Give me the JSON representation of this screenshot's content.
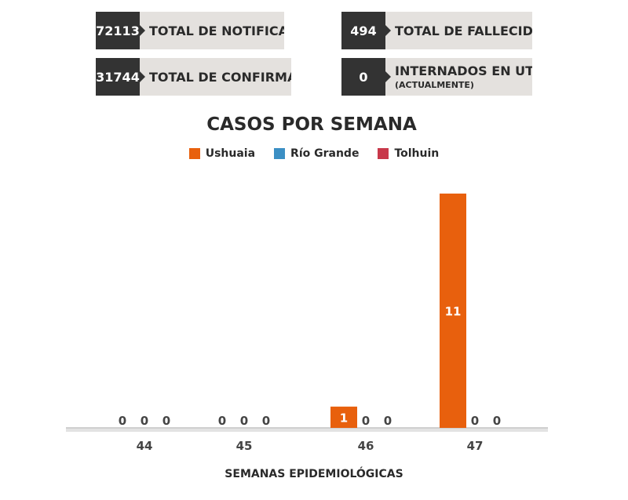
{
  "stats": {
    "notificados": {
      "value": "72113",
      "label": "TOTAL DE NOTIFICADOS"
    },
    "fallecidos": {
      "value": "494",
      "label": "TOTAL DE FALLECIDOS"
    },
    "confirmados": {
      "value": "31744",
      "label": "TOTAL DE CONFIRMADOS"
    },
    "uti": {
      "value": "0",
      "label": "INTERNADOS EN UTI",
      "sublabel": "(ACTUALMENTE)"
    }
  },
  "colors": {
    "ushuaia": "#e8600d",
    "rio_grande": "#3b8fc4",
    "tolhuin": "#c8384a"
  },
  "chart_data": {
    "type": "bar",
    "title": "CASOS POR SEMANA",
    "xlabel": "SEMANAS EPIDEMIOLÓGICAS",
    "ylabel": "",
    "categories": [
      "44",
      "45",
      "46",
      "47"
    ],
    "series": [
      {
        "name": "Ushuaia",
        "values": [
          0,
          0,
          1,
          11
        ]
      },
      {
        "name": "Río Grande",
        "values": [
          0,
          0,
          0,
          0
        ]
      },
      {
        "name": "Tolhuin",
        "values": [
          0,
          0,
          0,
          0
        ]
      }
    ],
    "ylim": [
      0,
      11
    ],
    "grid": false,
    "legend": "top-center",
    "data_labels": true
  }
}
